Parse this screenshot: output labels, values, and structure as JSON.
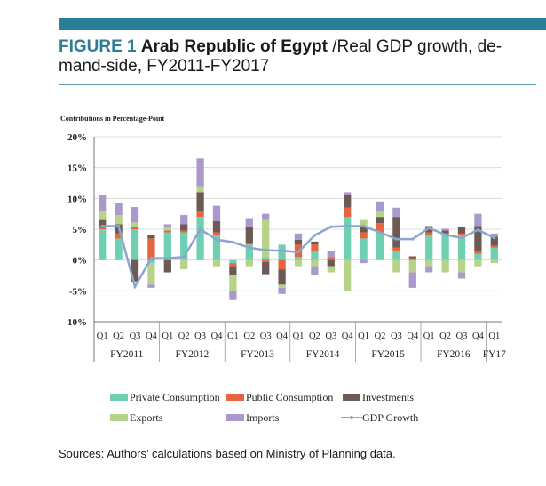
{
  "header": {
    "figure_label": "FIGURE 1",
    "title_bold": "Arab Republic of Egypt",
    "title_rest": " /Real GDP growth, de-mand-side, FY2011-FY2017"
  },
  "sources": "Sources: Authors’ calculations based on Ministry of Planning data.",
  "chart_data": {
    "type": "bar",
    "stacked": true,
    "ylabel": "Contributions in Percentage-Point",
    "ylim": [
      -10,
      20
    ],
    "yticks": [
      20,
      15,
      10,
      5,
      0,
      -5,
      -10
    ],
    "ytick_labels": [
      "20%",
      "15%",
      "10%",
      "5%",
      "0%",
      "-5%",
      "-10%"
    ],
    "grid": true,
    "categories": [
      "Q1",
      "Q2",
      "Q3",
      "Q4",
      "Q1",
      "Q2",
      "Q3",
      "Q4",
      "Q1",
      "Q2",
      "Q3",
      "Q4",
      "Q1",
      "Q2",
      "Q3",
      "Q4",
      "Q1",
      "Q2",
      "Q3",
      "Q4",
      "Q1",
      "Q2",
      "Q3",
      "Q4",
      "Q1"
    ],
    "groups": [
      {
        "label": "FY2011",
        "count": 4
      },
      {
        "label": "FY2012",
        "count": 4
      },
      {
        "label": "FY2013",
        "count": 4
      },
      {
        "label": "FY2014",
        "count": 4
      },
      {
        "label": "FY2015",
        "count": 4
      },
      {
        "label": "FY2016",
        "count": 4
      },
      {
        "label": "FY17",
        "count": 1
      }
    ],
    "series": [
      {
        "name": "Private Consumption",
        "color": "#6fcfb3",
        "kind": "bar",
        "values": [
          5.0,
          3.5,
          5.0,
          -0.5,
          4.5,
          4.5,
          7.0,
          4.0,
          -0.5,
          2.5,
          0.5,
          2.5,
          0.5,
          1.5,
          0.0,
          7.0,
          3.5,
          4.5,
          1.5,
          0.0,
          4.0,
          4.0,
          4.0,
          1.0,
          2.0
        ]
      },
      {
        "name": "Public Consumption",
        "color": "#e8643c",
        "kind": "bar",
        "values": [
          0.5,
          0.8,
          0.3,
          3.5,
          0.3,
          0.3,
          1.0,
          0.5,
          -0.5,
          0.3,
          -0.3,
          -1.5,
          2.0,
          1.0,
          0.5,
          1.5,
          1.0,
          1.5,
          0.5,
          0.3,
          0.5,
          0.3,
          0.3,
          0.5,
          0.3
        ]
      },
      {
        "name": "Investments",
        "color": "#6e5a54",
        "kind": "bar",
        "values": [
          1.0,
          1.5,
          -3.5,
          0.6,
          -2.0,
          1.0,
          3.0,
          1.8,
          -1.5,
          2.5,
          -2.0,
          -2.5,
          0.8,
          0.5,
          -1.0,
          2.0,
          1.0,
          1.0,
          5.0,
          0.3,
          1.0,
          0.5,
          1.0,
          4.0,
          1.5
        ]
      },
      {
        "name": "Exports",
        "color": "#b7d38a",
        "kind": "bar",
        "values": [
          1.5,
          1.5,
          0.8,
          -3.5,
          0.5,
          -1.5,
          1.0,
          -1.0,
          -2.5,
          -1.0,
          6.0,
          -0.5,
          -1.0,
          -1.0,
          -1.0,
          -5.0,
          1.0,
          1.0,
          -2.0,
          -2.0,
          -1.0,
          -2.0,
          -2.0,
          -1.0,
          -0.5
        ]
      },
      {
        "name": "Imports",
        "color": "#aa9acb",
        "kind": "bar",
        "values": [
          2.5,
          2.0,
          2.5,
          -0.5,
          0.5,
          1.5,
          4.5,
          2.5,
          -1.5,
          1.5,
          1.0,
          -1.0,
          1.0,
          -1.5,
          1.0,
          0.5,
          -0.5,
          1.5,
          1.5,
          -2.5,
          -1.0,
          0.3,
          -1.0,
          2.0,
          0.5
        ]
      },
      {
        "name": "GDP Growth",
        "color": "#8aa6cc",
        "kind": "line",
        "values": [
          5.5,
          5.5,
          -4.3,
          0.3,
          0.3,
          0.5,
          5.0,
          3.3,
          2.9,
          2.0,
          1.6,
          1.5,
          1.3,
          4.0,
          5.4,
          5.5,
          5.5,
          4.5,
          3.4,
          3.4,
          5.2,
          4.1,
          3.6,
          4.9,
          3.6
        ]
      }
    ],
    "legend_position": "bottom"
  }
}
